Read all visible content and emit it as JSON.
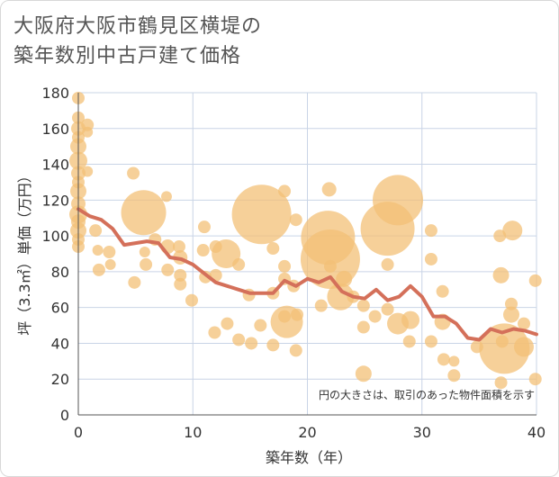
{
  "title_line1": "大阪府大阪市鶴見区横堤の",
  "title_line2": "築年数別中古戸建て価格",
  "chart_data": {
    "type": "scatter",
    "xlabel": "築年数（年）",
    "ylabel": "坪（3.3㎡）単価（万円）",
    "xlim": [
      0,
      40
    ],
    "ylim": [
      0,
      180
    ],
    "xticks": [
      0,
      10,
      20,
      30,
      40
    ],
    "yticks": [
      0,
      20,
      40,
      60,
      80,
      100,
      120,
      140,
      160,
      180
    ],
    "annotation": "円の大きさは、取引のあった物件面積を示す",
    "colors": {
      "bubble": "#f3c077",
      "line": "#d4705a",
      "grid": "#c9d4e6"
    },
    "trend_line": {
      "x": [
        0,
        1,
        2,
        3,
        4,
        5,
        6,
        7,
        8,
        9,
        10,
        11,
        12,
        13,
        14,
        15,
        16,
        17,
        18,
        19,
        20,
        21,
        22,
        23,
        24,
        25,
        26,
        27,
        28,
        29,
        30,
        31,
        32,
        33,
        34,
        35,
        36,
        37,
        38,
        39,
        40
      ],
      "y": [
        115,
        111,
        109,
        104,
        95,
        96,
        97,
        96,
        88,
        87,
        84,
        79,
        74,
        72,
        70,
        68,
        68,
        68,
        75,
        72,
        76,
        74,
        77,
        69,
        66,
        65,
        70,
        64,
        66,
        72,
        66,
        55,
        55,
        51,
        43,
        42,
        48,
        46,
        48,
        47,
        45
      ]
    },
    "bubbles": [
      {
        "x": 0,
        "y": 177,
        "s": 7
      },
      {
        "x": 0,
        "y": 166,
        "s": 7
      },
      {
        "x": 0,
        "y": 160,
        "s": 8
      },
      {
        "x": 0,
        "y": 155,
        "s": 7
      },
      {
        "x": 0,
        "y": 150,
        "s": 9
      },
      {
        "x": 0,
        "y": 142,
        "s": 10
      },
      {
        "x": 0,
        "y": 135,
        "s": 8
      },
      {
        "x": 0,
        "y": 130,
        "s": 7
      },
      {
        "x": 0,
        "y": 125,
        "s": 9
      },
      {
        "x": 0,
        "y": 118,
        "s": 8
      },
      {
        "x": 0,
        "y": 112,
        "s": 10
      },
      {
        "x": 0,
        "y": 108,
        "s": 8
      },
      {
        "x": 0,
        "y": 103,
        "s": 9
      },
      {
        "x": 0,
        "y": 98,
        "s": 7
      },
      {
        "x": 0,
        "y": 94,
        "s": 7
      },
      {
        "x": 0.8,
        "y": 162,
        "s": 7
      },
      {
        "x": 0.8,
        "y": 158,
        "s": 6
      },
      {
        "x": 0.8,
        "y": 136,
        "s": 6
      },
      {
        "x": 1.5,
        "y": 103,
        "s": 7
      },
      {
        "x": 1.7,
        "y": 92,
        "s": 6
      },
      {
        "x": 1.8,
        "y": 81,
        "s": 7
      },
      {
        "x": 2.7,
        "y": 91,
        "s": 7
      },
      {
        "x": 2.8,
        "y": 84,
        "s": 6
      },
      {
        "x": 4.8,
        "y": 135,
        "s": 7
      },
      {
        "x": 4.9,
        "y": 74,
        "s": 7
      },
      {
        "x": 5.7,
        "y": 113,
        "s": 25
      },
      {
        "x": 5.8,
        "y": 91,
        "s": 6
      },
      {
        "x": 5.9,
        "y": 84,
        "s": 7
      },
      {
        "x": 6.7,
        "y": 98,
        "s": 7
      },
      {
        "x": 7.7,
        "y": 122,
        "s": 6
      },
      {
        "x": 7.8,
        "y": 94,
        "s": 8
      },
      {
        "x": 7.8,
        "y": 81,
        "s": 7
      },
      {
        "x": 8.8,
        "y": 94,
        "s": 7
      },
      {
        "x": 8.9,
        "y": 88,
        "s": 8
      },
      {
        "x": 8.9,
        "y": 78,
        "s": 7
      },
      {
        "x": 8.9,
        "y": 73,
        "s": 7
      },
      {
        "x": 9.9,
        "y": 64,
        "s": 7
      },
      {
        "x": 11.0,
        "y": 105,
        "s": 7
      },
      {
        "x": 10.9,
        "y": 92,
        "s": 7
      },
      {
        "x": 11.1,
        "y": 77,
        "s": 7
      },
      {
        "x": 12.0,
        "y": 94,
        "s": 7
      },
      {
        "x": 12.0,
        "y": 78,
        "s": 7
      },
      {
        "x": 11.9,
        "y": 46,
        "s": 7
      },
      {
        "x": 12.9,
        "y": 90,
        "s": 16
      },
      {
        "x": 13.0,
        "y": 51,
        "s": 7
      },
      {
        "x": 14.0,
        "y": 84,
        "s": 7
      },
      {
        "x": 14.0,
        "y": 42,
        "s": 7
      },
      {
        "x": 14.9,
        "y": 67,
        "s": 7
      },
      {
        "x": 15.1,
        "y": 40,
        "s": 7
      },
      {
        "x": 16.0,
        "y": 112,
        "s": 33
      },
      {
        "x": 15.9,
        "y": 50,
        "s": 7
      },
      {
        "x": 17.0,
        "y": 68,
        "s": 7
      },
      {
        "x": 17.0,
        "y": 39,
        "s": 7
      },
      {
        "x": 17.0,
        "y": 93,
        "s": 7
      },
      {
        "x": 18.0,
        "y": 125,
        "s": 7
      },
      {
        "x": 18.0,
        "y": 83,
        "s": 7
      },
      {
        "x": 18.0,
        "y": 76,
        "s": 7
      },
      {
        "x": 18.0,
        "y": 55,
        "s": 7
      },
      {
        "x": 18.2,
        "y": 52,
        "s": 18
      },
      {
        "x": 18.8,
        "y": 72,
        "s": 7
      },
      {
        "x": 19.0,
        "y": 109,
        "s": 7
      },
      {
        "x": 19.1,
        "y": 56,
        "s": 7
      },
      {
        "x": 19.0,
        "y": 36,
        "s": 7
      },
      {
        "x": 21.9,
        "y": 126,
        "s": 8
      },
      {
        "x": 21.8,
        "y": 99,
        "s": 30
      },
      {
        "x": 22.0,
        "y": 87,
        "s": 33
      },
      {
        "x": 21.2,
        "y": 61,
        "s": 7
      },
      {
        "x": 22.0,
        "y": 83,
        "s": 7
      },
      {
        "x": 22.9,
        "y": 66,
        "s": 15
      },
      {
        "x": 23.2,
        "y": 76,
        "s": 9
      },
      {
        "x": 24.0,
        "y": 66,
        "s": 7
      },
      {
        "x": 24.9,
        "y": 61,
        "s": 7
      },
      {
        "x": 24.9,
        "y": 49,
        "s": 7
      },
      {
        "x": 25.9,
        "y": 55,
        "s": 7
      },
      {
        "x": 24.9,
        "y": 23,
        "s": 9
      },
      {
        "x": 27.0,
        "y": 104,
        "s": 30
      },
      {
        "x": 27.9,
        "y": 120,
        "s": 28
      },
      {
        "x": 27.0,
        "y": 84,
        "s": 7
      },
      {
        "x": 27.0,
        "y": 59,
        "s": 7
      },
      {
        "x": 27.9,
        "y": 51,
        "s": 12
      },
      {
        "x": 29.0,
        "y": 53,
        "s": 10
      },
      {
        "x": 28.9,
        "y": 41,
        "s": 7
      },
      {
        "x": 30.8,
        "y": 103,
        "s": 7
      },
      {
        "x": 30.8,
        "y": 87,
        "s": 7
      },
      {
        "x": 30.8,
        "y": 41,
        "s": 7
      },
      {
        "x": 31.8,
        "y": 69,
        "s": 7
      },
      {
        "x": 31.8,
        "y": 52,
        "s": 9
      },
      {
        "x": 31.9,
        "y": 31,
        "s": 7
      },
      {
        "x": 32.8,
        "y": 30,
        "s": 6
      },
      {
        "x": 32.8,
        "y": 22,
        "s": 7
      },
      {
        "x": 34.8,
        "y": 38,
        "s": 7
      },
      {
        "x": 36.8,
        "y": 100,
        "s": 7
      },
      {
        "x": 36.9,
        "y": 78,
        "s": 9
      },
      {
        "x": 37.2,
        "y": 37,
        "s": 28
      },
      {
        "x": 37.0,
        "y": 41,
        "s": 7
      },
      {
        "x": 36.9,
        "y": 18,
        "s": 7
      },
      {
        "x": 37.9,
        "y": 103,
        "s": 11
      },
      {
        "x": 37.8,
        "y": 62,
        "s": 7
      },
      {
        "x": 37.8,
        "y": 56,
        "s": 9
      },
      {
        "x": 38.9,
        "y": 51,
        "s": 7
      },
      {
        "x": 38.9,
        "y": 38,
        "s": 11
      },
      {
        "x": 39.9,
        "y": 75,
        "s": 7
      },
      {
        "x": 39.9,
        "y": 20,
        "s": 7
      }
    ]
  }
}
